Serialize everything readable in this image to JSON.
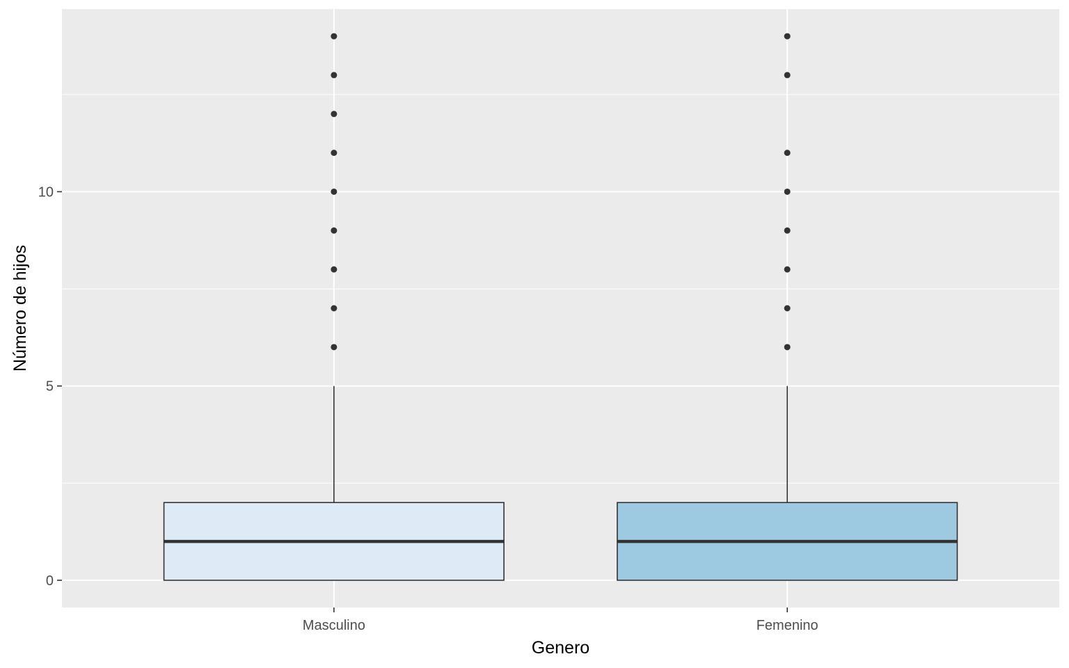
{
  "chart_data": {
    "type": "boxplot",
    "xlabel": "Genero",
    "ylabel": "Número de hijos",
    "ylim": [
      -0.7,
      14.7
    ],
    "y_ticks": [
      0,
      5,
      10
    ],
    "y_tick_labels": [
      "0",
      "5",
      "10"
    ],
    "grid": true,
    "legend": "none",
    "categories": [
      "Masculino",
      "Femenino"
    ],
    "boxes": [
      {
        "category": "Masculino",
        "min": 0,
        "q1": 0,
        "median": 1,
        "q3": 2,
        "max": 5,
        "outliers": [
          6,
          7,
          8,
          9,
          10,
          11,
          12,
          13,
          14
        ],
        "fill": "#deebf7"
      },
      {
        "category": "Femenino",
        "min": 0,
        "q1": 0,
        "median": 1,
        "q3": 2,
        "max": 5,
        "outliers": [
          6,
          7,
          8,
          9,
          10,
          11,
          13,
          14
        ],
        "fill": "#9ecae1"
      }
    ],
    "colors": {
      "panel_background": "#ebebeb",
      "grid": "#ffffff",
      "box_outline": "#333333",
      "outlier": "#333333"
    }
  }
}
